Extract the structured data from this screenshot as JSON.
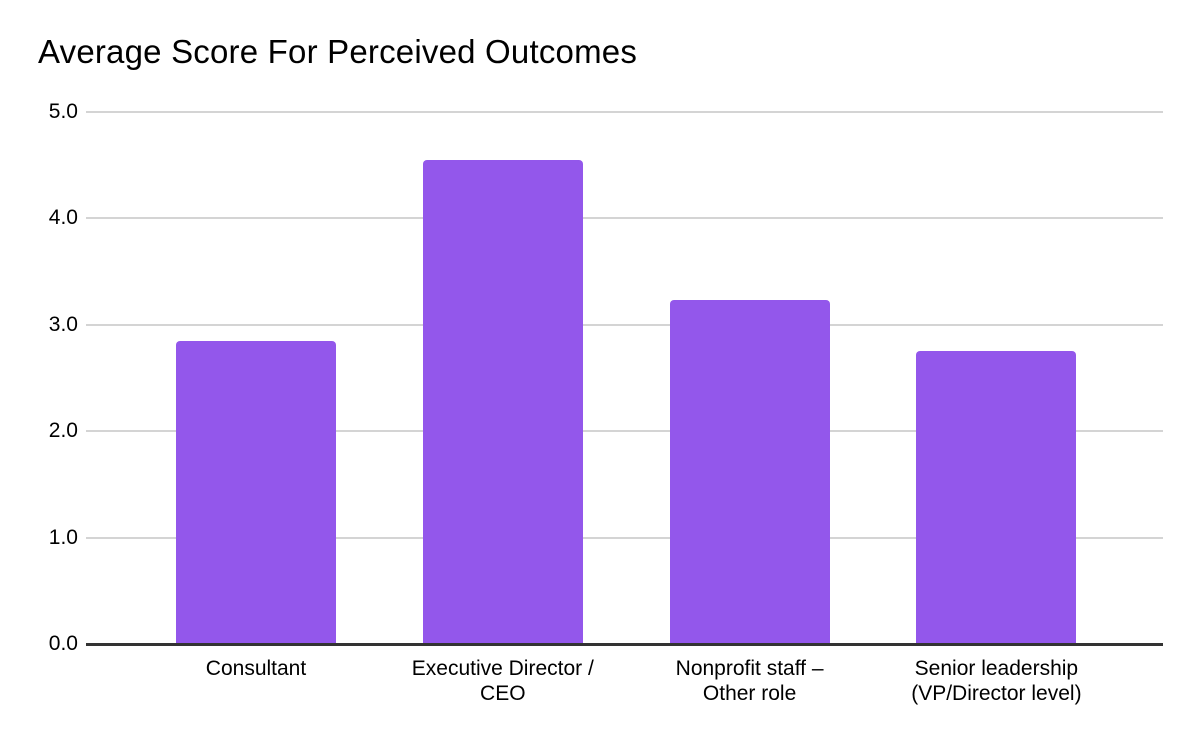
{
  "title": "Average Score For Perceived Outcomes",
  "colors": {
    "bar": "#9357EB",
    "gridline": "#d4d4d4",
    "axis_line": "#333333",
    "text": "#000000",
    "background": "#ffffff"
  },
  "chart_data": {
    "type": "bar",
    "title": "Average Score For Perceived Outcomes",
    "categories": [
      "Consultant",
      "Executive Director / CEO",
      "Nonprofit staff – Other role",
      "Senior leadership (VP/Director level)"
    ],
    "category_label_lines": [
      [
        "Consultant"
      ],
      [
        "Executive Director /",
        "CEO"
      ],
      [
        "Nonprofit staff –",
        "Other role"
      ],
      [
        "Senior leadership",
        "(VP/Director level)"
      ]
    ],
    "values": [
      2.85,
      4.55,
      3.23,
      2.75
    ],
    "xlabel": "",
    "ylabel": "",
    "ylim": [
      0,
      5
    ],
    "yticks": [
      0.0,
      1.0,
      2.0,
      3.0,
      4.0,
      5.0
    ],
    "ytick_labels": [
      "0.0",
      "1.0",
      "2.0",
      "3.0",
      "4.0",
      "5.0"
    ],
    "grid": true,
    "legend": false,
    "bar_color": "#9357EB"
  }
}
